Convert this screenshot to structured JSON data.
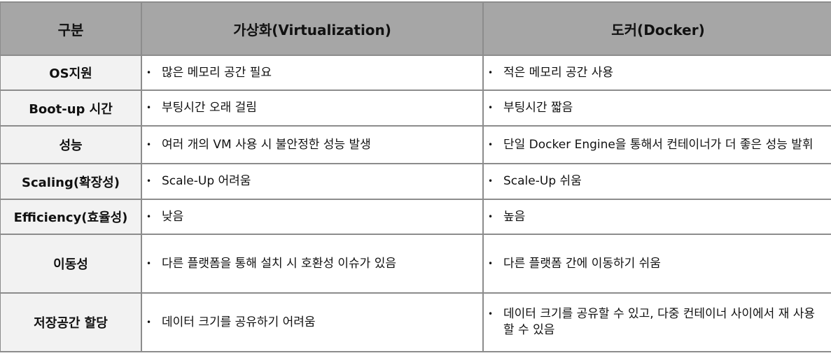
{
  "headers": [
    "구분",
    "가상화(Virtualization)",
    "도커(Docker)"
  ],
  "rows": [
    {
      "category": "OS지원",
      "virtualization": "많은 메모리 공간 필요",
      "docker": "적은 메모리 공간 사용"
    },
    {
      "category": "Boot-up 시간",
      "virtualization": "부팅시간 오래 걸림",
      "docker": "부팅시간 짧음"
    },
    {
      "category": "성능",
      "virtualization": "여러 개의 VM 사용 시 불안정한 성능 발생",
      "docker": "단일 Docker Engine을 통해서 컨테이너가 더 좋은 성능 발휘"
    },
    {
      "category": "Scaling(확장성)",
      "virtualization": "Scale-Up 어려움",
      "docker": "Scale-Up 쉬움"
    },
    {
      "category": "Efficiency(효율성)",
      "virtualization": "낮음",
      "docker": "높음"
    },
    {
      "category": "이동성",
      "virtualization": "다른 플랫폼을 통해 설치 시 호환성 이슈가 있음",
      "docker": "다른 플랫폼 간에 이동하기 쉬움"
    },
    {
      "category": "저장공간 할당",
      "virtualization": "데이터 크기를 공유하기 어려움",
      "docker": "데이터 크기를 공유할 수 있고, 다중 컨테이너 사이에서 재 사용할 수 있음"
    }
  ],
  "bullet": "•",
  "colors": {
    "header_bg": "#a6a6a6",
    "category_bg": "#f2f2f2",
    "border": "#8c8c8c"
  }
}
